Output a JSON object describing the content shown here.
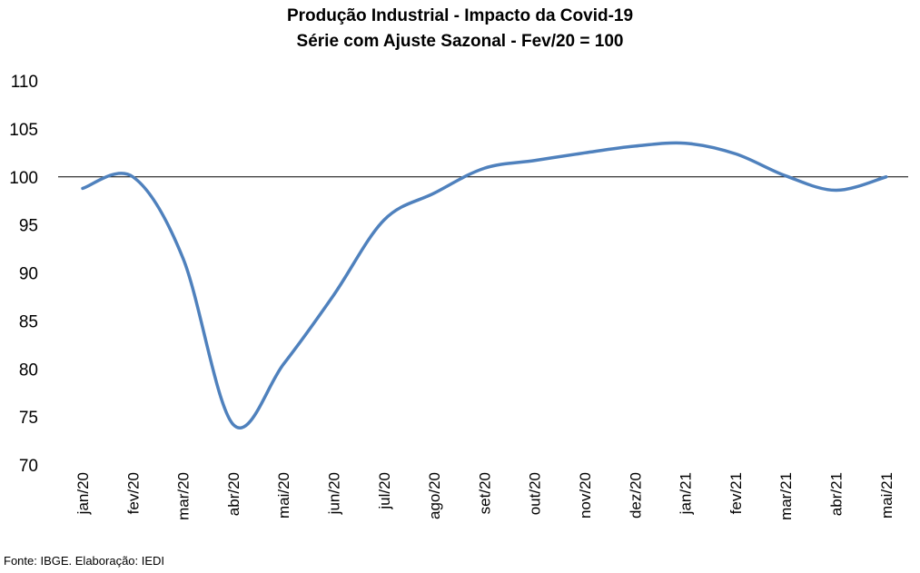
{
  "chart_data": {
    "type": "line",
    "title": "Produção Industrial - Impacto da Covid-19",
    "subtitle": "Série com Ajuste Sazonal - Fev/20 = 100",
    "xlabel": "",
    "ylabel": "",
    "ylim": [
      70,
      110
    ],
    "yticks": [
      70,
      75,
      80,
      85,
      90,
      95,
      100,
      105,
      110
    ],
    "categories": [
      "jan/20",
      "fev/20",
      "mar/20",
      "abr/20",
      "mai/20",
      "jun/20",
      "jul/20",
      "ago/20",
      "set/20",
      "out/20",
      "nov/20",
      "dez/20",
      "jan/21",
      "fev/21",
      "mar/21",
      "abr/21",
      "mai/21"
    ],
    "series": [
      {
        "name": "",
        "color": "#4F81BD",
        "values": [
          98.8,
          100.0,
          91.5,
          74.2,
          80.5,
          87.7,
          95.5,
          98.3,
          100.9,
          101.7,
          102.5,
          103.2,
          103.5,
          102.4,
          100.1,
          98.6,
          100.0
        ]
      }
    ],
    "reference_line": {
      "y": 100,
      "color": "#000000"
    },
    "grid": false,
    "legend": "none"
  },
  "footer": {
    "source": "Fonte: IBGE. Elaboração: IEDI"
  }
}
